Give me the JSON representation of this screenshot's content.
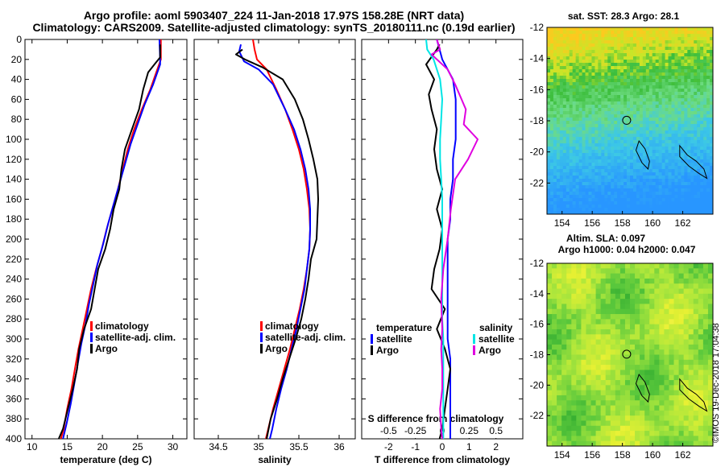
{
  "header": {
    "title_line1": "Argo profile: aoml 5903407_224 11-Jan-2018 17.97S 158.28E (NRT data)",
    "title_line2": "Climatology: CARS2009. Satellite-adjusted climatology: synTS_20180111.nc (0.19d earlier)"
  },
  "credit": "©IMOS 19-Dec-2018 17:04:38",
  "colors": {
    "climatology": "#ff0000",
    "satellite": "#0000ff",
    "argo": "#000000",
    "s_satellite": "#00e5e5",
    "s_argo": "#e000e0"
  },
  "chart_data": [
    {
      "type": "line",
      "name": "temperature-profile",
      "xlabel": "temperature (deg C)",
      "ylabel": "depth",
      "xlim": [
        9,
        32
      ],
      "ylim": [
        400,
        0
      ],
      "xticks": [
        10,
        15,
        20,
        25,
        30
      ],
      "yticks": [
        0,
        20,
        40,
        60,
        80,
        100,
        120,
        140,
        160,
        180,
        200,
        220,
        240,
        260,
        280,
        300,
        320,
        340,
        360,
        380,
        400
      ],
      "legend": [
        "climatology",
        "satellite-adj. clim.",
        "Argo"
      ],
      "series": [
        {
          "name": "climatology",
          "color": "red",
          "points": [
            [
              28.3,
              0
            ],
            [
              28.3,
              20
            ],
            [
              27.8,
              30
            ],
            [
              26.8,
              50
            ],
            [
              25.6,
              70
            ],
            [
              24.5,
              90
            ],
            [
              23.6,
              110
            ],
            [
              22.9,
              130
            ],
            [
              22.2,
              150
            ],
            [
              21.4,
              170
            ],
            [
              20.6,
              190
            ],
            [
              19.9,
              210
            ],
            [
              19.1,
              230
            ],
            [
              18.4,
              250
            ],
            [
              17.8,
              270
            ],
            [
              17.2,
              290
            ],
            [
              16.6,
              310
            ],
            [
              16.1,
              330
            ],
            [
              15.6,
              350
            ],
            [
              15.0,
              370
            ],
            [
              14.5,
              390
            ],
            [
              14.1,
              400
            ]
          ]
        },
        {
          "name": "satellite-adj. clim.",
          "color": "blue",
          "points": [
            [
              28.1,
              0
            ],
            [
              28.2,
              20
            ],
            [
              28.2,
              25
            ],
            [
              27.2,
              45
            ],
            [
              26.0,
              65
            ],
            [
              25.0,
              85
            ],
            [
              24.0,
              105
            ],
            [
              23.2,
              125
            ],
            [
              22.4,
              145
            ],
            [
              21.6,
              165
            ],
            [
              20.8,
              185
            ],
            [
              20.1,
              205
            ],
            [
              19.3,
              225
            ],
            [
              18.7,
              245
            ],
            [
              18.1,
              265
            ],
            [
              17.6,
              285
            ],
            [
              17.0,
              305
            ],
            [
              16.5,
              325
            ],
            [
              16.0,
              345
            ],
            [
              15.5,
              365
            ],
            [
              14.9,
              385
            ],
            [
              14.4,
              400
            ]
          ]
        },
        {
          "name": "Argo",
          "color": "black",
          "points": [
            [
              28.2,
              5
            ],
            [
              28.2,
              18
            ],
            [
              27.5,
              24
            ],
            [
              26.5,
              33
            ],
            [
              25.8,
              50
            ],
            [
              25.2,
              70
            ],
            [
              24.2,
              90
            ],
            [
              23.2,
              110
            ],
            [
              22.7,
              130
            ],
            [
              22.4,
              150
            ],
            [
              21.6,
              170
            ],
            [
              21.1,
              190
            ],
            [
              20.4,
              210
            ],
            [
              19.4,
              230
            ],
            [
              18.9,
              250
            ],
            [
              18.4,
              270
            ],
            [
              17.4,
              290
            ],
            [
              16.7,
              310
            ],
            [
              16.4,
              330
            ],
            [
              15.8,
              350
            ],
            [
              15.1,
              370
            ],
            [
              14.4,
              390
            ],
            [
              13.8,
              400
            ]
          ]
        }
      ]
    },
    {
      "type": "line",
      "name": "salinity-profile",
      "xlabel": "salinity",
      "ylabel": "depth",
      "xlim": [
        34.2,
        36.2
      ],
      "ylim": [
        400,
        0
      ],
      "xticks": [
        34.5,
        35,
        35.5,
        36
      ],
      "legend": [
        "climatology",
        "satellite-adj. clim.",
        "Argo"
      ],
      "series": [
        {
          "name": "climatology",
          "color": "red",
          "points": [
            [
              34.93,
              0
            ],
            [
              34.95,
              10
            ],
            [
              34.98,
              20
            ],
            [
              35.1,
              30
            ],
            [
              35.22,
              50
            ],
            [
              35.33,
              70
            ],
            [
              35.42,
              90
            ],
            [
              35.5,
              110
            ],
            [
              35.56,
              130
            ],
            [
              35.6,
              150
            ],
            [
              35.63,
              170
            ],
            [
              35.64,
              190
            ],
            [
              35.63,
              210
            ],
            [
              35.6,
              230
            ],
            [
              35.56,
              250
            ],
            [
              35.51,
              270
            ],
            [
              35.45,
              290
            ],
            [
              35.39,
              310
            ],
            [
              35.32,
              330
            ],
            [
              35.25,
              350
            ],
            [
              35.18,
              370
            ],
            [
              35.12,
              390
            ],
            [
              35.09,
              400
            ]
          ]
        },
        {
          "name": "satellite-adj. clim.",
          "color": "blue",
          "points": [
            [
              34.78,
              5
            ],
            [
              34.76,
              12
            ],
            [
              34.82,
              22
            ],
            [
              35.0,
              30
            ],
            [
              35.18,
              45
            ],
            [
              35.33,
              70
            ],
            [
              35.44,
              90
            ],
            [
              35.52,
              110
            ],
            [
              35.58,
              130
            ],
            [
              35.62,
              150
            ],
            [
              35.64,
              170
            ],
            [
              35.64,
              190
            ],
            [
              35.63,
              210
            ],
            [
              35.6,
              230
            ],
            [
              35.57,
              250
            ],
            [
              35.52,
              270
            ],
            [
              35.47,
              290
            ],
            [
              35.41,
              310
            ],
            [
              35.35,
              330
            ],
            [
              35.28,
              350
            ],
            [
              35.22,
              370
            ],
            [
              35.17,
              390
            ],
            [
              35.14,
              400
            ]
          ]
        },
        {
          "name": "Argo",
          "color": "black",
          "points": [
            [
              34.8,
              10
            ],
            [
              34.72,
              15
            ],
            [
              34.83,
              20
            ],
            [
              35.05,
              28
            ],
            [
              35.3,
              40
            ],
            [
              35.45,
              60
            ],
            [
              35.55,
              80
            ],
            [
              35.62,
              100
            ],
            [
              35.68,
              120
            ],
            [
              35.73,
              140
            ],
            [
              35.74,
              160
            ],
            [
              35.73,
              180
            ],
            [
              35.72,
              200
            ],
            [
              35.65,
              220
            ],
            [
              35.62,
              240
            ],
            [
              35.58,
              260
            ],
            [
              35.53,
              280
            ],
            [
              35.46,
              300
            ],
            [
              35.38,
              320
            ],
            [
              35.3,
              340
            ],
            [
              35.23,
              360
            ],
            [
              35.15,
              380
            ],
            [
              35.1,
              400
            ]
          ]
        }
      ]
    },
    {
      "type": "line",
      "name": "difference-profile",
      "xlabel": "T difference from climatology",
      "x2label": "S difference from climatology",
      "ylabel": "depth",
      "xlim": [
        -3,
        3
      ],
      "x2lim": [
        -0.75,
        0.75
      ],
      "ylim": [
        400,
        0
      ],
      "xticks": [
        -2,
        -1,
        0,
        1,
        2
      ],
      "x2ticks": [
        -0.5,
        -0.25,
        0,
        0.25,
        0.5
      ],
      "legend_temperature_title": "temperature",
      "legend_salinity_title": "salinity",
      "legend_temperature": [
        "satellite",
        "Argo"
      ],
      "legend_salinity": [
        "satellite",
        "Argo"
      ],
      "series": [
        {
          "name": "temperature satellite",
          "color": "blue",
          "axis": "T",
          "points": [
            [
              -0.2,
              0
            ],
            [
              0.0,
              20
            ],
            [
              0.4,
              40
            ],
            [
              0.5,
              60
            ],
            [
              0.5,
              80
            ],
            [
              0.5,
              100
            ],
            [
              0.4,
              120
            ],
            [
              0.4,
              140
            ],
            [
              0.3,
              160
            ],
            [
              0.3,
              180
            ],
            [
              0.2,
              200
            ],
            [
              0.2,
              220
            ],
            [
              0.2,
              240
            ],
            [
              0.2,
              260
            ],
            [
              0.2,
              280
            ],
            [
              0.2,
              300
            ],
            [
              0.3,
              320
            ],
            [
              0.3,
              340
            ],
            [
              0.3,
              360
            ],
            [
              0.3,
              380
            ],
            [
              0.3,
              400
            ]
          ]
        },
        {
          "name": "temperature Argo",
          "color": "black",
          "axis": "T",
          "points": [
            [
              -0.1,
              5
            ],
            [
              -0.2,
              10
            ],
            [
              -0.6,
              25
            ],
            [
              -0.3,
              40
            ],
            [
              -0.5,
              55
            ],
            [
              -0.4,
              70
            ],
            [
              -0.2,
              90
            ],
            [
              -0.3,
              110
            ],
            [
              -0.2,
              130
            ],
            [
              0.0,
              150
            ],
            [
              -0.2,
              170
            ],
            [
              0.0,
              190
            ],
            [
              -0.1,
              210
            ],
            [
              -0.3,
              230
            ],
            [
              -0.4,
              250
            ],
            [
              0.1,
              270
            ],
            [
              -0.2,
              290
            ],
            [
              0.1,
              310
            ],
            [
              0.3,
              330
            ],
            [
              0.2,
              350
            ],
            [
              0.1,
              370
            ],
            [
              0.0,
              390
            ],
            [
              -0.1,
              400
            ]
          ]
        },
        {
          "name": "salinity satellite",
          "color": "cyan",
          "axis": "S",
          "points": [
            [
              -0.15,
              0
            ],
            [
              -0.14,
              10
            ],
            [
              -0.08,
              20
            ],
            [
              -0.02,
              40
            ],
            [
              0.0,
              60
            ],
            [
              -0.01,
              80
            ],
            [
              -0.02,
              100
            ],
            [
              -0.02,
              120
            ],
            [
              -0.01,
              140
            ],
            [
              0.0,
              160
            ],
            [
              0.0,
              180
            ],
            [
              0.0,
              200
            ],
            [
              0.0,
              220
            ],
            [
              0.0,
              240
            ],
            [
              0.0,
              260
            ],
            [
              0.0,
              280
            ],
            [
              0.01,
              300
            ],
            [
              0.01,
              320
            ],
            [
              0.01,
              340
            ],
            [
              0.01,
              360
            ],
            [
              0.01,
              380
            ],
            [
              0.01,
              400
            ]
          ]
        },
        {
          "name": "salinity Argo",
          "color": "magenta",
          "axis": "S",
          "points": [
            [
              -0.05,
              0
            ],
            [
              -0.02,
              10
            ],
            [
              -0.1,
              15
            ],
            [
              0.05,
              30
            ],
            [
              0.12,
              45
            ],
            [
              0.22,
              70
            ],
            [
              0.2,
              85
            ],
            [
              0.33,
              100
            ],
            [
              0.24,
              120
            ],
            [
              0.12,
              140
            ],
            [
              0.08,
              170
            ],
            [
              0.05,
              200
            ],
            [
              0.01,
              230
            ],
            [
              -0.01,
              260
            ],
            [
              0.0,
              290
            ],
            [
              -0.01,
              310
            ],
            [
              0.0,
              330
            ],
            [
              0.0,
              350
            ],
            [
              -0.02,
              370
            ],
            [
              -0.01,
              390
            ],
            [
              0.0,
              400
            ]
          ]
        }
      ]
    },
    {
      "type": "heatmap",
      "name": "sst-map",
      "title": "sat. SST: 28.3 Argo: 28.1",
      "xlim": [
        153,
        164
      ],
      "ylim": [
        -24,
        -12
      ],
      "xticks": [
        154,
        156,
        158,
        160,
        162
      ],
      "yticks": [
        -12,
        -14,
        -16,
        -18,
        -20,
        -22
      ],
      "argo_position": [
        158.28,
        -17.97
      ]
    },
    {
      "type": "heatmap",
      "name": "sla-map",
      "title_line1": "Altim. SLA: 0.097",
      "title_line2": "Argo h1000: 0.04 h2000: 0.047",
      "xlim": [
        153,
        164
      ],
      "ylim": [
        -24,
        -12
      ],
      "xticks": [
        154,
        156,
        158,
        160,
        162
      ],
      "yticks": [
        -12,
        -14,
        -16,
        -18,
        -20,
        -22
      ],
      "argo_position": [
        158.28,
        -17.97
      ]
    }
  ]
}
